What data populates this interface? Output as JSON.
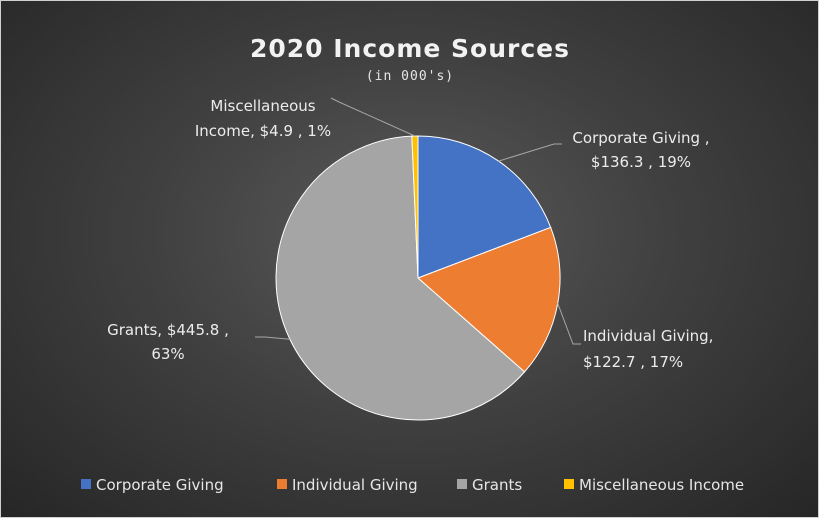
{
  "chart_data": {
    "type": "pie",
    "title": "2020 Income Sources",
    "subtitle": "(in 000's)",
    "categories": [
      "Corporate Giving",
      "Individual Giving",
      "Grants",
      "Miscellaneous Income"
    ],
    "values": [
      136.3,
      122.7,
      445.8,
      4.9
    ],
    "percents": [
      19,
      17,
      63,
      1
    ],
    "colors": [
      "#4472c4",
      "#ed7d31",
      "#a5a5a5",
      "#ffc000"
    ],
    "data_labels": [
      [
        "Corporate Giving ,",
        "$136.3 , 19%"
      ],
      [
        "Individual Giving,",
        "$122.7 , 17%"
      ],
      [
        "Grants, $445.8 ,",
        "63%"
      ],
      [
        "Miscellaneous",
        "Income, $4.9 , 1%"
      ]
    ],
    "legend": {
      "position": "bottom",
      "entries": [
        "Corporate Giving",
        "Individual Giving",
        "Grants",
        "Miscellaneous Income"
      ]
    }
  }
}
